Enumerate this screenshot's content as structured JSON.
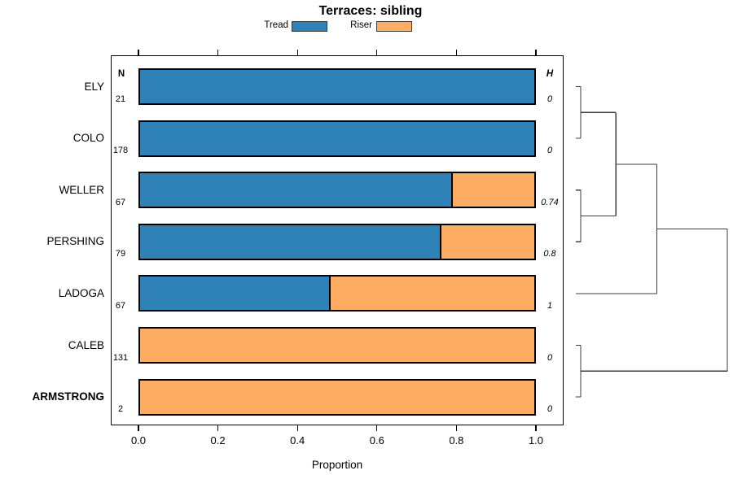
{
  "title": "Terraces: sibling",
  "xlabel": "Proportion",
  "columns": {
    "n_header": "N",
    "h_header": "H"
  },
  "legend": {
    "items": [
      {
        "label": "Tread",
        "color": "#2E82B8"
      },
      {
        "label": "Riser",
        "color": "#FCAD62"
      }
    ]
  },
  "x_axis": {
    "tick_labels": [
      "0.0",
      "0.2",
      "0.4",
      "0.6",
      "0.8",
      "1.0"
    ],
    "range": [
      0,
      1
    ]
  },
  "chart_data": {
    "type": "bar",
    "orientation": "horizontal",
    "stacked": true,
    "grid": false,
    "legend_position": "top",
    "title": "Terraces: sibling",
    "xlabel": "Proportion",
    "xlim": [
      0,
      1
    ],
    "categories": [
      "ELY",
      "COLO",
      "WELLER",
      "PERSHING",
      "LADOGA",
      "CALEB",
      "ARMSTRONG"
    ],
    "emphasized_category": "ARMSTRONG",
    "n_column": {
      "header": "N",
      "values": [
        21,
        178,
        67,
        79,
        67,
        131,
        2
      ]
    },
    "h_column": {
      "header": "H",
      "values": [
        "0",
        "0",
        "0.74",
        "0.8",
        "1",
        "0",
        "0"
      ]
    },
    "series": [
      {
        "name": "Tread",
        "color": "#2E82B8",
        "values": [
          1,
          1,
          0.79,
          0.76,
          0.48,
          0,
          0
        ]
      },
      {
        "name": "Riser",
        "color": "#FCAD62",
        "values": [
          0,
          0,
          0.21,
          0.24,
          0.52,
          1,
          1
        ]
      }
    ],
    "dendrogram": {
      "side": "right",
      "merges": [
        {
          "left": 0,
          "right": 1,
          "height": 0
        },
        {
          "left": 2,
          "right": 3,
          "height": 0
        },
        {
          "left": "m0",
          "right": "m1",
          "height": 0.24
        },
        {
          "left": "m2",
          "right": 4,
          "height": 0.52
        },
        {
          "left": 5,
          "right": 6,
          "height": 0
        },
        {
          "left": "m3",
          "right": "m4",
          "height": 1
        }
      ]
    }
  }
}
